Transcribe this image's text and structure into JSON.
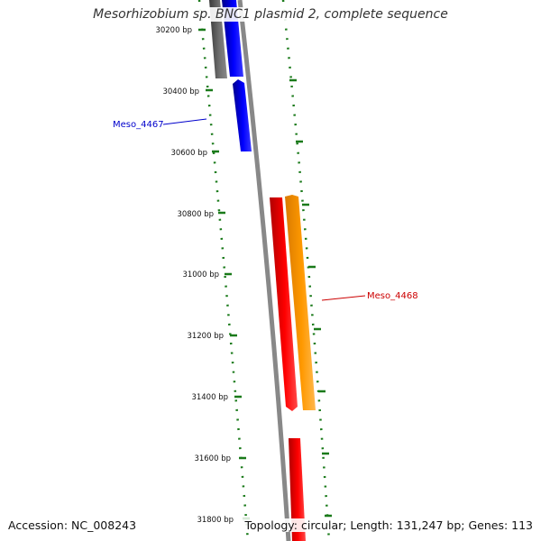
{
  "title": "Mesorhizobium sp. BNC1 plasmid 2, complete sequence",
  "footer": {
    "accession": "Accession: NC_008243",
    "summary": "Topology: circular; Length: 131,247 bp; Genes: 113"
  },
  "ticks": [
    "30200 bp",
    "30400 bp",
    "30600 bp",
    "30800 bp",
    "31000 bp",
    "31200 bp",
    "31400 bp",
    "31600 bp",
    "31800 bp"
  ],
  "genes": [
    {
      "label": "Meso_4467",
      "color": "#0000cc"
    },
    {
      "label": "Meso_4468",
      "color": "#cc0000"
    }
  ],
  "colors": {
    "backbone": "#888888",
    "dotted": "#1a7a1a",
    "gene_blue": "#0000ff",
    "gene_red": "#ff0000",
    "gene_orange": "#ff9900",
    "gene_gray": "#666666"
  }
}
